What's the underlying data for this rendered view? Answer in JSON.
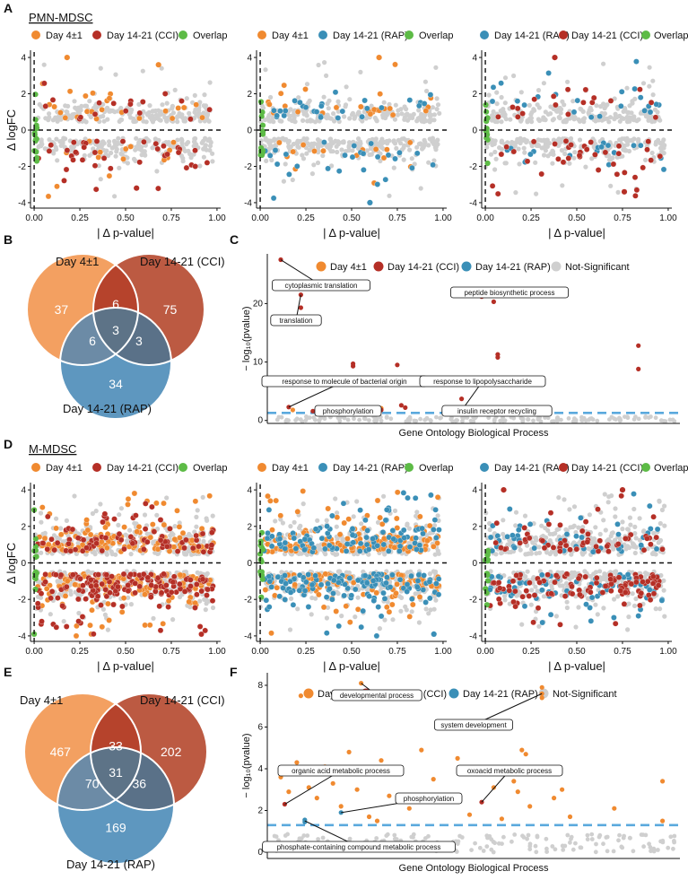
{
  "figure": {
    "colors": {
      "day4": "#F08A30",
      "cci": "#B52F26",
      "rap": "#3A8FB7",
      "overlap": "#5DBB46",
      "nonsig": "#CFCFCF",
      "venn_day4": "#F3A061",
      "venn_cci": "#BC5A42",
      "venn_rap": "#5E97BF",
      "venn_day4_cci": "#B6432C",
      "venn_day4_rap": "#6C8BA6",
      "venn_cci_rap": "#5A7188",
      "venn_all": "#5D7387",
      "threshold": "#5AA9DD"
    }
  },
  "sections": [
    {
      "title": "PMN-MDSC",
      "scatter_letter": "A",
      "venn_letter": "B",
      "go_letter": "C",
      "ylabel": "Δ logFC",
      "scatter_panels": [
        {
          "legend": [
            {
              "label": "Day 4±1",
              "color_key": "day4"
            },
            {
              "label": "Day 14-21 (CCI)",
              "color_key": "cci"
            },
            {
              "label": "Overlap",
              "color_key": "overlap"
            }
          ],
          "xlabel": "| Δ p-value|",
          "chart_data": {
            "type": "scatter",
            "ylim": [
              -4.3,
              4.3
            ],
            "xlim": [
              -0.02,
              1.02
            ],
            "yticks": [
              "4",
              "2",
              "0",
              "-2",
              "-4"
            ],
            "xticks": [
              "0.00",
              "0.25",
              "0.50",
              "0.75",
              "1.00"
            ],
            "series": [
              "day4",
              "cci",
              "overlap"
            ],
            "density": "low",
            "notable_points": [
              {
                "x": 0.18,
                "y": 4.0,
                "series": "day4"
              },
              {
                "x": 0.68,
                "y": 3.6,
                "series": "day4"
              },
              {
                "x": 0.56,
                "y": -3.2,
                "series": "cci"
              }
            ]
          }
        },
        {
          "legend": [
            {
              "label": "Day 4±1",
              "color_key": "day4"
            },
            {
              "label": "Day 14-21 (RAP)",
              "color_key": "rap"
            },
            {
              "label": "Overlap",
              "color_key": "overlap"
            }
          ],
          "xlabel": "| Δ p-value|",
          "chart_data": {
            "type": "scatter",
            "ylim": [
              -4.3,
              4.3
            ],
            "xlim": [
              -0.02,
              1.02
            ],
            "yticks": [
              "4",
              "2",
              "0",
              "-2",
              "-4"
            ],
            "xticks": [
              "0.00",
              "0.25",
              "0.50",
              "0.75",
              "1.00"
            ],
            "series": [
              "day4",
              "rap",
              "overlap"
            ],
            "density": "low",
            "notable_points": [
              {
                "x": 0.65,
                "y": 4.0,
                "series": "day4"
              },
              {
                "x": 0.6,
                "y": -4.0,
                "series": "rap"
              }
            ]
          }
        },
        {
          "legend": [
            {
              "label": "Day 14-21 (RAP)",
              "color_key": "rap"
            },
            {
              "label": "Day 14-21 (CCI)",
              "color_key": "cci"
            },
            {
              "label": "Overlap",
              "color_key": "overlap"
            }
          ],
          "xlabel": "| Δ p-value|",
          "chart_data": {
            "type": "scatter",
            "ylim": [
              -4.3,
              4.3
            ],
            "xlim": [
              -0.02,
              1.02
            ],
            "yticks": [
              "4",
              "2",
              "0",
              "-2",
              "-4"
            ],
            "xticks": [
              "0.00",
              "0.25",
              "0.50",
              "0.75",
              "1.00"
            ],
            "series": [
              "rap",
              "cci",
              "overlap"
            ],
            "density": "low",
            "notable_points": [
              {
                "x": 0.38,
                "y": 4.0,
                "series": "cci"
              },
              {
                "x": 0.76,
                "y": -3.4,
                "series": "cci"
              }
            ]
          }
        }
      ],
      "venn": {
        "labels": {
          "day4": "Day 4±1",
          "cci": "Day 14-21 (CCI)",
          "rap": "Day 14-21 (RAP)"
        },
        "counts": {
          "day4_only": "37",
          "cci_only": "75",
          "rap_only": "34",
          "day4_cci": "6",
          "day4_rap": "6",
          "cci_rap": "3",
          "all": "3"
        }
      },
      "go": {
        "legend": [
          {
            "label": "Day 4±1",
            "color_key": "day4"
          },
          {
            "label": "Day 14-21 (CCI)",
            "color_key": "cci"
          },
          {
            "label": "Day 14-21 (RAP)",
            "color_key": "rap"
          },
          {
            "label": "Not-Significant",
            "color_key": "nonsig"
          }
        ],
        "ylabel": "− log₁₀(pvalue)",
        "xlabel": "Gene Ontology Biological Process",
        "chart_data": {
          "type": "scatter",
          "ylim": [
            -0.5,
            28.5
          ],
          "yticks": [
            0,
            10,
            20
          ],
          "threshold": 1.3,
          "annotations": [
            "cytoplasmic translation",
            "translation",
            "peptide biosynthetic process",
            "response to molecule of bacterial origin",
            "response to lipopolysaccharide",
            "phosphorylation",
            "insulin receptor recycling"
          ],
          "points": [
            {
              "x": 0.02,
              "y": 27.5,
              "series": "cci"
            },
            {
              "x": 0.07,
              "y": 21.5,
              "series": "cci"
            },
            {
              "x": 0.07,
              "y": 19.3,
              "series": "cci"
            },
            {
              "x": 0.52,
              "y": 21.2,
              "series": "cci"
            },
            {
              "x": 0.55,
              "y": 20.3,
              "series": "cci"
            },
            {
              "x": 0.56,
              "y": 11.3,
              "series": "cci"
            },
            {
              "x": 0.56,
              "y": 10.8,
              "series": "cci"
            },
            {
              "x": 0.2,
              "y": 9.7,
              "series": "cci"
            },
            {
              "x": 0.2,
              "y": 9.3,
              "series": "cci"
            },
            {
              "x": 0.31,
              "y": 9.5,
              "series": "cci"
            },
            {
              "x": 0.31,
              "y": 6.7,
              "series": "cci"
            },
            {
              "x": 0.31,
              "y": 6.2,
              "series": "cci"
            },
            {
              "x": 0.91,
              "y": 12.8,
              "series": "cci"
            },
            {
              "x": 0.91,
              "y": 8.8,
              "series": "cci"
            },
            {
              "x": 0.47,
              "y": 3.7,
              "series": "cci"
            },
            {
              "x": 0.32,
              "y": 2.6,
              "series": "cci"
            },
            {
              "x": 0.33,
              "y": 2.2,
              "series": "cci"
            },
            {
              "x": 0.04,
              "y": 2.3,
              "series": "cci"
            },
            {
              "x": 0.27,
              "y": 2.1,
              "series": "day4"
            },
            {
              "x": 0.05,
              "y": 1.8,
              "series": "day4"
            },
            {
              "x": 0.48,
              "y": 1.9,
              "series": "day4"
            },
            {
              "x": 0.27,
              "y": 1.8,
              "series": "cci"
            },
            {
              "x": 0.5,
              "y": 1.7,
              "series": "cci"
            },
            {
              "x": 0.1,
              "y": 1.6,
              "series": "cci"
            },
            {
              "x": 0.62,
              "y": 1.6,
              "series": "cci"
            }
          ],
          "nonsig_count": 150
        }
      }
    },
    {
      "title": "M-MDSC",
      "scatter_letter": "D",
      "venn_letter": "E",
      "go_letter": "F",
      "ylabel": "Δ logFC",
      "scatter_panels": [
        {
          "legend": [
            {
              "label": "Day 4±1",
              "color_key": "day4"
            },
            {
              "label": "Day 14-21 (CCI)",
              "color_key": "cci"
            },
            {
              "label": "Overlap",
              "color_key": "overlap"
            }
          ],
          "xlabel": "| Δ p-value|",
          "chart_data": {
            "type": "scatter",
            "ylim": [
              -4.3,
              4.3
            ],
            "xlim": [
              -0.02,
              1.02
            ],
            "yticks": [
              "4",
              "2",
              "0",
              "-2",
              "-4"
            ],
            "xticks": [
              "0.00",
              "0.25",
              "0.50",
              "0.75",
              "1.00"
            ],
            "series": [
              "day4",
              "cci",
              "overlap"
            ],
            "density": "high",
            "notable_points": [
              {
                "x": 0.0,
                "y": -3.9,
                "series": "overlap"
              },
              {
                "x": 0.0,
                "y": 2.9,
                "series": "overlap"
              }
            ]
          }
        },
        {
          "legend": [
            {
              "label": "Day 4±1",
              "color_key": "day4"
            },
            {
              "label": "Day 14-21 (RAP)",
              "color_key": "rap"
            },
            {
              "label": "Overlap",
              "color_key": "overlap"
            }
          ],
          "xlabel": "| Δ p-value|",
          "chart_data": {
            "type": "scatter",
            "ylim": [
              -4.3,
              4.3
            ],
            "xlim": [
              -0.02,
              1.02
            ],
            "yticks": [
              "4",
              "2",
              "0",
              "-2",
              "-4"
            ],
            "xticks": [
              "0.00",
              "0.25",
              "0.50",
              "0.75",
              "1.00"
            ],
            "series": [
              "day4",
              "rap",
              "overlap"
            ],
            "density": "high",
            "notable_points": [
              {
                "x": 0.95,
                "y": -3.9,
                "series": "rap"
              }
            ]
          }
        },
        {
          "legend": [
            {
              "label": "Day 14-21 (RAP)",
              "color_key": "rap"
            },
            {
              "label": "Day 14-21 (CCI)",
              "color_key": "cci"
            },
            {
              "label": "Overlap",
              "color_key": "overlap"
            }
          ],
          "xlabel": "| Δ p-value|",
          "chart_data": {
            "type": "scatter",
            "ylim": [
              -4.3,
              4.3
            ],
            "xlim": [
              -0.02,
              1.02
            ],
            "yticks": [
              "4",
              "2",
              "0",
              "-2",
              "-4"
            ],
            "xticks": [
              "0.00",
              "0.25",
              "0.50",
              "0.75",
              "1.00"
            ],
            "series": [
              "rap",
              "cci",
              "overlap"
            ],
            "density": "medium",
            "notable_points": [
              {
                "x": 0.1,
                "y": 4.0,
                "series": "cci"
              },
              {
                "x": 0.75,
                "y": 4.0,
                "series": "cci"
              }
            ]
          }
        }
      ],
      "venn": {
        "labels": {
          "day4": "Day 4±1",
          "cci": "Day 14-21 (CCI)",
          "rap": "Day 14-21 (RAP)"
        },
        "counts": {
          "day4_only": "467",
          "cci_only": "202",
          "rap_only": "169",
          "day4_cci": "33",
          "day4_rap": "70",
          "cci_rap": "36",
          "all": "31"
        }
      },
      "go": {
        "legend": [
          {
            "label": "Day 4±1",
            "color_key": "day4"
          },
          {
            "label": "Day 14-21 (CCI)",
            "color_key": "cci"
          },
          {
            "label": "Day 14-21 (RAP)",
            "color_key": "rap"
          },
          {
            "label": "Not-Significant",
            "color_key": "nonsig"
          }
        ],
        "ylabel": "− log₁₀(pvalue)",
        "xlabel": "Gene Ontology Biological Process",
        "chart_data": {
          "type": "scatter",
          "ylim": [
            -0.3,
            8.6
          ],
          "yticks": [
            0,
            2,
            4,
            6,
            8
          ],
          "threshold": 1.3,
          "annotations": [
            "developmental process",
            "system development",
            "organic acid metabolic process",
            "oxoacid metabolic process",
            "phosphorylation",
            "phosphate-containing compound metabolic process"
          ],
          "points": [
            {
              "x": 0.07,
              "y": 7.5,
              "series": "day4"
            },
            {
              "x": 0.22,
              "y": 8.1,
              "series": "day4"
            },
            {
              "x": 0.67,
              "y": 7.9,
              "series": "day4"
            },
            {
              "x": 0.67,
              "y": 7.6,
              "series": "day4"
            },
            {
              "x": 0.67,
              "y": 7.4,
              "series": "day4"
            },
            {
              "x": 0.03,
              "y": 2.3,
              "series": "cci"
            },
            {
              "x": 0.08,
              "y": 1.55,
              "series": "rap"
            },
            {
              "x": 0.08,
              "y": 1.45,
              "series": "rap"
            },
            {
              "x": 0.17,
              "y": 1.9,
              "series": "rap"
            },
            {
              "x": 0.52,
              "y": 2.4,
              "series": "cci"
            },
            {
              "x": 0.02,
              "y": 3.6,
              "series": "day4"
            },
            {
              "x": 0.04,
              "y": 2.9,
              "series": "day4"
            },
            {
              "x": 0.06,
              "y": 4.3,
              "series": "day4"
            },
            {
              "x": 0.09,
              "y": 3.1,
              "series": "day4"
            },
            {
              "x": 0.11,
              "y": 2.6,
              "series": "day4"
            },
            {
              "x": 0.13,
              "y": 4.1,
              "series": "day4"
            },
            {
              "x": 0.15,
              "y": 3.3,
              "series": "day4"
            },
            {
              "x": 0.17,
              "y": 2.2,
              "series": "day4"
            },
            {
              "x": 0.19,
              "y": 4.8,
              "series": "day4"
            },
            {
              "x": 0.21,
              "y": 3.0,
              "series": "day4"
            },
            {
              "x": 0.24,
              "y": 1.7,
              "series": "day4"
            },
            {
              "x": 0.27,
              "y": 4.4,
              "series": "day4"
            },
            {
              "x": 0.29,
              "y": 2.7,
              "series": "day4"
            },
            {
              "x": 0.31,
              "y": 3.8,
              "series": "day4"
            },
            {
              "x": 0.34,
              "y": 2.1,
              "series": "day4"
            },
            {
              "x": 0.37,
              "y": 4.9,
              "series": "day4"
            },
            {
              "x": 0.4,
              "y": 3.5,
              "series": "day4"
            },
            {
              "x": 0.43,
              "y": 2.5,
              "series": "day4"
            },
            {
              "x": 0.46,
              "y": 4.5,
              "series": "day4"
            },
            {
              "x": 0.49,
              "y": 1.8,
              "series": "day4"
            },
            {
              "x": 0.55,
              "y": 3.1,
              "series": "day4"
            },
            {
              "x": 0.58,
              "y": 4.0,
              "series": "day4"
            },
            {
              "x": 0.6,
              "y": 3.4,
              "series": "day4"
            },
            {
              "x": 0.62,
              "y": 4.9,
              "series": "day4"
            },
            {
              "x": 0.63,
              "y": 4.7,
              "series": "day4"
            },
            {
              "x": 0.61,
              "y": 2.9,
              "series": "day4"
            },
            {
              "x": 0.64,
              "y": 2.2,
              "series": "day4"
            },
            {
              "x": 0.66,
              "y": 3.9,
              "series": "day4"
            },
            {
              "x": 0.7,
              "y": 2.6,
              "series": "day4"
            },
            {
              "x": 0.72,
              "y": 3.0,
              "series": "day4"
            },
            {
              "x": 0.74,
              "y": 1.7,
              "series": "day4"
            },
            {
              "x": 0.85,
              "y": 2.1,
              "series": "day4"
            },
            {
              "x": 0.97,
              "y": 3.4,
              "series": "day4"
            },
            {
              "x": 0.97,
              "y": 1.5,
              "series": "day4"
            },
            {
              "x": 0.26,
              "y": 1.5,
              "series": "day4"
            },
            {
              "x": 0.57,
              "y": 1.6,
              "series": "day4"
            }
          ],
          "nonsig_count": 160
        }
      }
    }
  ]
}
